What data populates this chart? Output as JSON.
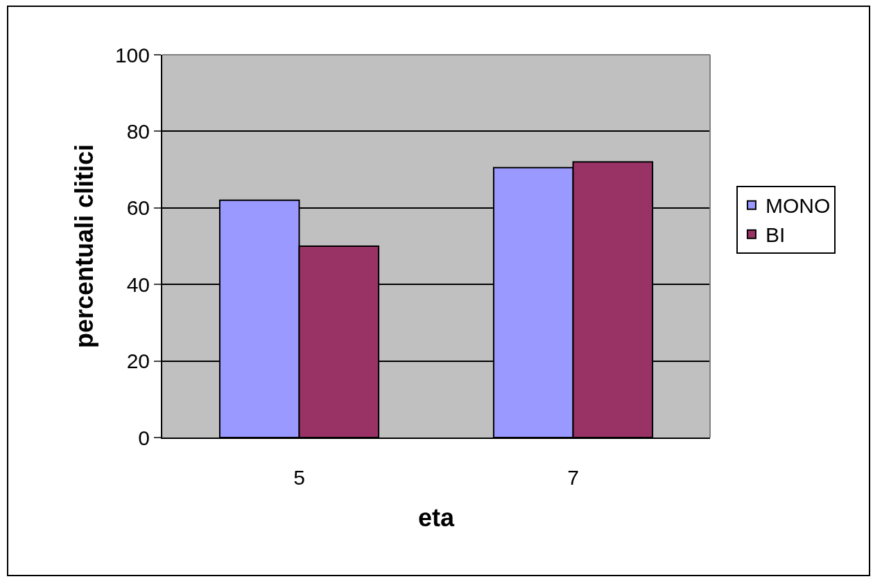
{
  "chart_data": {
    "type": "bar",
    "xlabel": "eta",
    "ylabel": "percentuali clitici",
    "categories": [
      "5",
      "7"
    ],
    "series": [
      {
        "name": "MONO",
        "color": "#9999ff",
        "values": [
          62,
          70.5
        ]
      },
      {
        "name": "BI",
        "color": "#993366",
        "values": [
          50,
          72
        ]
      }
    ],
    "ylim": [
      0,
      100
    ],
    "yticks": [
      0,
      20,
      40,
      60,
      80,
      100
    ],
    "grid": "y",
    "legend": "right"
  }
}
